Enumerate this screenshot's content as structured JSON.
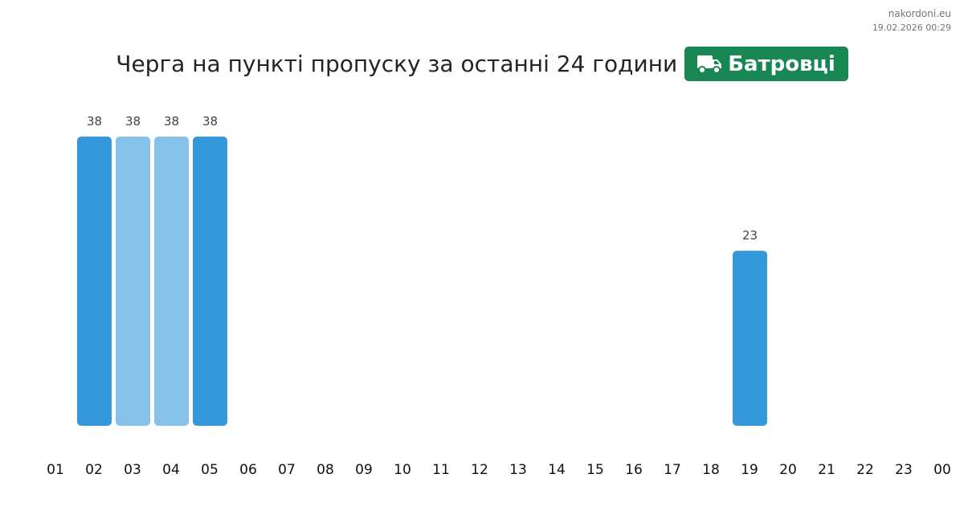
{
  "brand": {
    "site": "nakordoni.eu",
    "timestamp": "19.02.2026 00:29"
  },
  "header": {
    "title": "Черга на пункті пропуску за останні 24 години",
    "checkpoint": "Батровці",
    "checkpoint_icon": "truck-icon",
    "badge_color": "#198754"
  },
  "chart_data": {
    "type": "bar",
    "title": "Черга на пункті пропуску за останні 24 години",
    "categories": [
      "01",
      "02",
      "03",
      "04",
      "05",
      "06",
      "07",
      "08",
      "09",
      "10",
      "11",
      "12",
      "13",
      "14",
      "15",
      "16",
      "17",
      "18",
      "19",
      "20",
      "21",
      "22",
      "23",
      "00"
    ],
    "values": [
      null,
      38,
      38,
      38,
      38,
      null,
      null,
      null,
      null,
      null,
      null,
      null,
      null,
      null,
      null,
      null,
      null,
      null,
      23,
      null,
      null,
      null,
      null,
      null
    ],
    "shades": [
      "",
      "dark",
      "light",
      "light",
      "dark",
      "",
      "",
      "",
      "",
      "",
      "",
      "",
      "",
      "",
      "",
      "",
      "",
      "",
      "dark",
      "",
      "",
      "",
      "",
      ""
    ],
    "colors": {
      "dark": "#3498db",
      "light": "#85c1e9"
    },
    "ylim": [
      0,
      38
    ],
    "grid": false,
    "legend": "none"
  }
}
